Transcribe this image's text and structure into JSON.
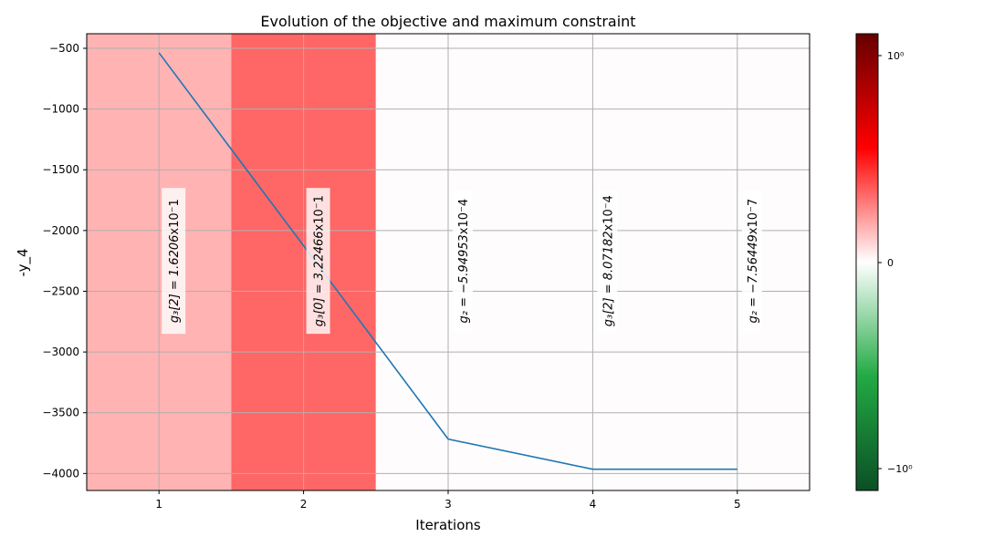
{
  "chart_data": {
    "type": "line",
    "title": "Evolution of the objective and maximum constraint",
    "xlabel": "Iterations",
    "ylabel": "-y_4",
    "x": [
      1,
      2,
      3,
      4,
      5
    ],
    "xlim": [
      0.5,
      5.5
    ],
    "ylim": [
      -4140,
      -380
    ],
    "xticks": [
      1,
      2,
      3,
      4,
      5
    ],
    "yticks": [
      -500,
      -1000,
      -1500,
      -2000,
      -2500,
      -3000,
      -3500,
      -4000
    ],
    "ytick_labels": [
      "−500",
      "−1000",
      "−1500",
      "−2000",
      "−2500",
      "−3000",
      "−3500",
      "−4000"
    ],
    "grid": true,
    "series": [
      {
        "values": [
          -537,
          -2125,
          -3717,
          -3965,
          -3965
        ],
        "color": "#1f77b4"
      }
    ],
    "background_bands": [
      {
        "iteration": 1,
        "color": "#ffb3b3"
      },
      {
        "iteration": 2,
        "color": "#ff6666"
      },
      {
        "iteration": 3,
        "color": "#fefcfc"
      },
      {
        "iteration": 4,
        "color": "#fefcfc"
      },
      {
        "iteration": 5,
        "color": "#fefcfc"
      }
    ],
    "annotations": [
      {
        "iteration": 1,
        "y": -2250,
        "text_math": "g₃[2] = 1.6206",
        "text_tail": "x10⁻1",
        "boxed": true
      },
      {
        "iteration": 2,
        "y": -2250,
        "text_math": "g₃[0] = 3.22466",
        "text_tail": "x10⁻1",
        "boxed": true
      },
      {
        "iteration": 3,
        "y": -2250,
        "text_math": "g₂ = −5.94953",
        "text_tail": "x10⁻4",
        "boxed": false
      },
      {
        "iteration": 4,
        "y": -2250,
        "text_math": "g₃[2] = 8.07182",
        "text_tail": "x10⁻4",
        "boxed": false
      },
      {
        "iteration": 5,
        "y": -2250,
        "text_math": "g₂ = −7.56449",
        "text_tail": "x10⁻7",
        "boxed": false
      }
    ],
    "colorbar": {
      "tick_labels": [
        "10⁰",
        "0",
        "−10⁰"
      ],
      "gradient_stops": [
        "#660000",
        "#ff0000",
        "#ffffff",
        "#22aa44",
        "#0b4f25"
      ]
    }
  }
}
